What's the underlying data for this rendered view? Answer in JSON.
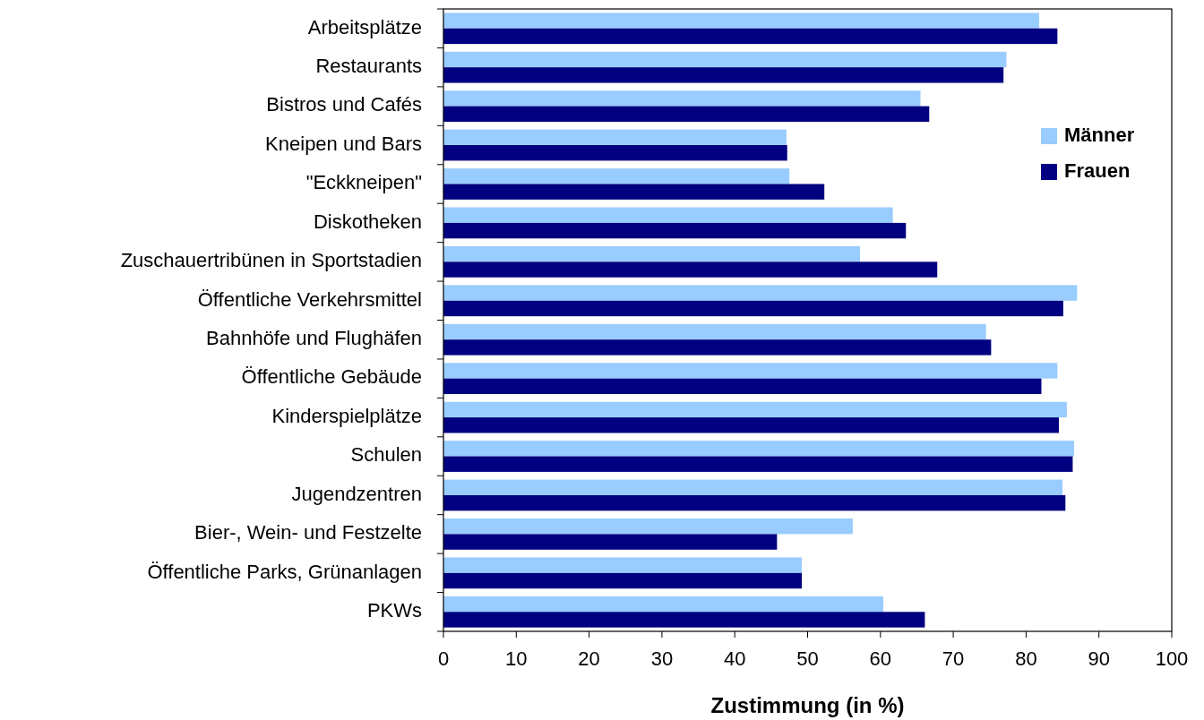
{
  "chart_data": {
    "type": "bar",
    "orientation": "horizontal",
    "xlabel": "Zustimmung (in %)",
    "categories": [
      "Arbeitsplätze",
      "Restaurants",
      "Bistros und Cafés",
      "Kneipen und Bars",
      "\"Eckkneipen\"",
      "Diskotheken",
      "Zuschauertribünen in Sportstadien",
      "Öffentliche Verkehrsmittel",
      "Bahnhöfe und Flughäfen",
      "Öffentliche Gebäude",
      "Kinderspielplätze",
      "Schulen",
      "Jugendzentren",
      "Bier-, Wein- und Festzelte",
      "Öffentliche Parks, Grünanlagen",
      "PKWs"
    ],
    "series": [
      {
        "name": "Männer",
        "color": "#99ccff",
        "values": [
          81.8,
          77.3,
          65.5,
          47.1,
          47.5,
          61.7,
          57.2,
          87.0,
          74.5,
          84.3,
          85.6,
          86.6,
          85.0,
          56.2,
          49.2,
          60.4
        ]
      },
      {
        "name": "Frauen",
        "color": "#000080",
        "values": [
          84.3,
          76.9,
          66.7,
          47.2,
          52.3,
          63.5,
          67.8,
          85.1,
          75.2,
          82.1,
          84.5,
          86.4,
          85.4,
          45.8,
          49.2,
          66.1
        ]
      }
    ],
    "xlim": [
      0,
      100
    ],
    "xticks": [
      0,
      10,
      20,
      30,
      40,
      50,
      60,
      70,
      80,
      90,
      100
    ],
    "grid": false,
    "legend": "right"
  }
}
